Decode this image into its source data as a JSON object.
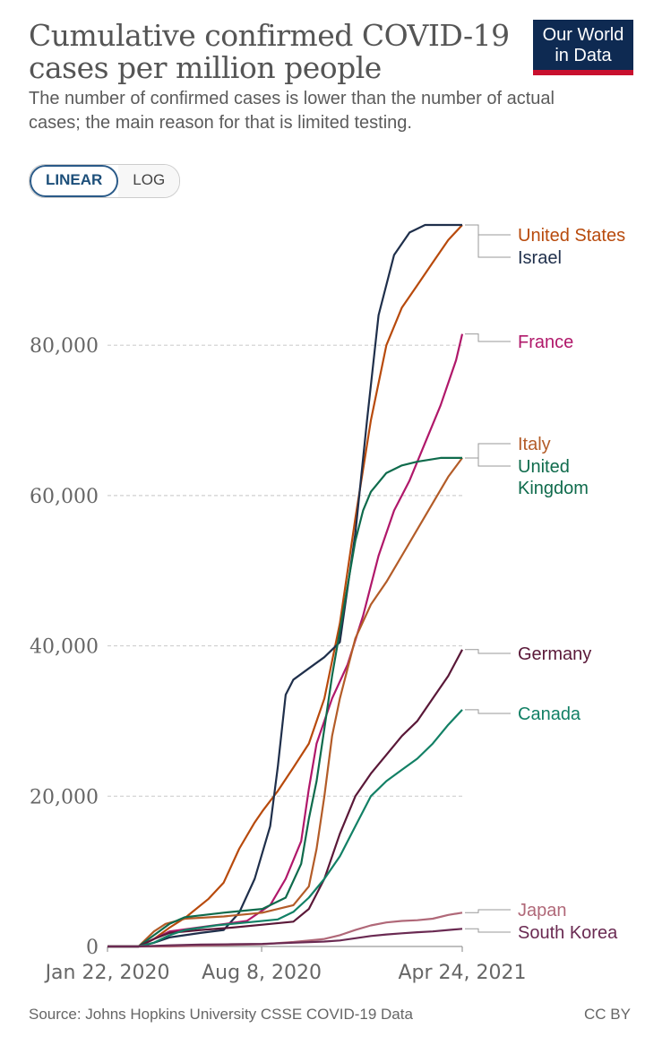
{
  "header": {
    "title": "Cumulative confirmed COVID-19 cases per million people",
    "subtitle": "The number of confirmed cases is lower than the number of actual cases; the main reason for that is limited testing.",
    "logo_line1": "Our World",
    "logo_line2": "in Data"
  },
  "controls": {
    "linear_label": "LINEAR",
    "log_label": "LOG",
    "selected": "LINEAR"
  },
  "footer": {
    "source": "Source: Johns Hopkins University CSSE COVID-19 Data",
    "license": "CC BY"
  },
  "colors": {
    "United States": "#b84a0c",
    "Israel": "#1f2f4b",
    "France": "#b0186a",
    "Italy": "#b35c28",
    "United Kingdom": "#0f6b4c",
    "Germany": "#5a1838",
    "Canada": "#128065",
    "Japan": "#b06878",
    "South Korea": "#6a2a52"
  },
  "chart_data": {
    "type": "line",
    "title": "Cumulative confirmed COVID-19 cases per million people",
    "xlabel": "",
    "ylabel": "",
    "x_unit": "days since Jan 22, 2020",
    "xlim": [
      0,
      458
    ],
    "ylim": [
      0,
      96000
    ],
    "y_ticks": [
      0,
      20000,
      40000,
      60000,
      80000
    ],
    "y_tick_labels": [
      "0",
      "20,000",
      "40,000",
      "60,000",
      "80,000"
    ],
    "x_ticks": [
      0,
      199,
      458
    ],
    "x_tick_labels": [
      "Jan 22, 2020",
      "Aug 8, 2020",
      "Apr 24, 2021"
    ],
    "grid": true,
    "legend": "right, end-labels",
    "series": [
      {
        "name": "United States",
        "points": [
          [
            0,
            0
          ],
          [
            40,
            0
          ],
          [
            60,
            1000
          ],
          [
            80,
            2500
          ],
          [
            100,
            3800
          ],
          [
            130,
            6300
          ],
          [
            150,
            8500
          ],
          [
            170,
            13000
          ],
          [
            190,
            16500
          ],
          [
            200,
            18000
          ],
          [
            220,
            20700
          ],
          [
            240,
            23800
          ],
          [
            260,
            27000
          ],
          [
            280,
            33000
          ],
          [
            300,
            43000
          ],
          [
            320,
            57000
          ],
          [
            340,
            70000
          ],
          [
            360,
            80000
          ],
          [
            380,
            85000
          ],
          [
            400,
            88000
          ],
          [
            420,
            91000
          ],
          [
            440,
            94000
          ],
          [
            458,
            96000
          ]
        ]
      },
      {
        "name": "Israel",
        "points": [
          [
            0,
            0
          ],
          [
            40,
            0
          ],
          [
            60,
            500
          ],
          [
            80,
            1200
          ],
          [
            120,
            1800
          ],
          [
            150,
            2200
          ],
          [
            170,
            4500
          ],
          [
            190,
            9000
          ],
          [
            210,
            16000
          ],
          [
            220,
            24000
          ],
          [
            230,
            33500
          ],
          [
            240,
            35500
          ],
          [
            260,
            37000
          ],
          [
            280,
            38500
          ],
          [
            300,
            40500
          ],
          [
            320,
            55000
          ],
          [
            335,
            70000
          ],
          [
            350,
            84000
          ],
          [
            370,
            92000
          ],
          [
            390,
            95000
          ],
          [
            410,
            96000
          ],
          [
            430,
            96000
          ],
          [
            458,
            96000
          ]
        ]
      },
      {
        "name": "France",
        "points": [
          [
            0,
            0
          ],
          [
            40,
            0
          ],
          [
            60,
            1000
          ],
          [
            80,
            2000
          ],
          [
            130,
            2700
          ],
          [
            180,
            3400
          ],
          [
            210,
            5500
          ],
          [
            230,
            9000
          ],
          [
            250,
            14000
          ],
          [
            260,
            21000
          ],
          [
            270,
            27000
          ],
          [
            290,
            33000
          ],
          [
            310,
            37500
          ],
          [
            330,
            44000
          ],
          [
            350,
            52000
          ],
          [
            370,
            58000
          ],
          [
            390,
            62000
          ],
          [
            410,
            67000
          ],
          [
            430,
            72000
          ],
          [
            450,
            78000
          ],
          [
            458,
            81500
          ]
        ]
      },
      {
        "name": "Italy",
        "points": [
          [
            0,
            0
          ],
          [
            40,
            0
          ],
          [
            60,
            2000
          ],
          [
            75,
            3000
          ],
          [
            100,
            3700
          ],
          [
            150,
            4000
          ],
          [
            200,
            4500
          ],
          [
            240,
            5500
          ],
          [
            260,
            8000
          ],
          [
            270,
            13000
          ],
          [
            280,
            20000
          ],
          [
            290,
            28000
          ],
          [
            300,
            33000
          ],
          [
            320,
            41000
          ],
          [
            340,
            45500
          ],
          [
            360,
            48500
          ],
          [
            380,
            52000
          ],
          [
            400,
            55500
          ],
          [
            420,
            59000
          ],
          [
            440,
            62500
          ],
          [
            458,
            65000
          ]
        ]
      },
      {
        "name": "United Kingdom",
        "points": [
          [
            0,
            0
          ],
          [
            40,
            0
          ],
          [
            60,
            1500
          ],
          [
            80,
            3000
          ],
          [
            100,
            3900
          ],
          [
            150,
            4500
          ],
          [
            200,
            5000
          ],
          [
            230,
            6500
          ],
          [
            250,
            11000
          ],
          [
            260,
            17000
          ],
          [
            270,
            22000
          ],
          [
            280,
            29000
          ],
          [
            290,
            36000
          ],
          [
            300,
            42000
          ],
          [
            310,
            48000
          ],
          [
            320,
            54000
          ],
          [
            330,
            58000
          ],
          [
            340,
            60500
          ],
          [
            360,
            63000
          ],
          [
            380,
            64000
          ],
          [
            400,
            64500
          ],
          [
            430,
            65000
          ],
          [
            458,
            65000
          ]
        ]
      },
      {
        "name": "Germany",
        "points": [
          [
            0,
            0
          ],
          [
            40,
            0
          ],
          [
            60,
            1000
          ],
          [
            80,
            1800
          ],
          [
            120,
            2200
          ],
          [
            160,
            2500
          ],
          [
            200,
            2900
          ],
          [
            240,
            3300
          ],
          [
            260,
            5000
          ],
          [
            280,
            9000
          ],
          [
            300,
            15000
          ],
          [
            320,
            20000
          ],
          [
            340,
            23000
          ],
          [
            360,
            25500
          ],
          [
            380,
            28000
          ],
          [
            400,
            30000
          ],
          [
            420,
            33000
          ],
          [
            440,
            36000
          ],
          [
            458,
            39500
          ]
        ]
      },
      {
        "name": "Canada",
        "points": [
          [
            0,
            0
          ],
          [
            40,
            0
          ],
          [
            60,
            500
          ],
          [
            80,
            1500
          ],
          [
            100,
            2200
          ],
          [
            140,
            2800
          ],
          [
            180,
            3200
          ],
          [
            220,
            3600
          ],
          [
            240,
            4600
          ],
          [
            260,
            6500
          ],
          [
            280,
            9000
          ],
          [
            300,
            12000
          ],
          [
            320,
            16000
          ],
          [
            340,
            20000
          ],
          [
            360,
            22000
          ],
          [
            380,
            23500
          ],
          [
            400,
            25000
          ],
          [
            420,
            27000
          ],
          [
            440,
            29500
          ],
          [
            458,
            31500
          ]
        ]
      },
      {
        "name": "Japan",
        "points": [
          [
            0,
            0
          ],
          [
            80,
            0
          ],
          [
            120,
            100
          ],
          [
            160,
            200
          ],
          [
            200,
            300
          ],
          [
            240,
            600
          ],
          [
            260,
            800
          ],
          [
            280,
            1000
          ],
          [
            300,
            1500
          ],
          [
            320,
            2200
          ],
          [
            340,
            2800
          ],
          [
            360,
            3200
          ],
          [
            380,
            3400
          ],
          [
            400,
            3500
          ],
          [
            420,
            3700
          ],
          [
            440,
            4200
          ],
          [
            458,
            4500
          ]
        ]
      },
      {
        "name": "South Korea",
        "points": [
          [
            0,
            0
          ],
          [
            40,
            0
          ],
          [
            80,
            150
          ],
          [
            120,
            250
          ],
          [
            160,
            300
          ],
          [
            200,
            350
          ],
          [
            240,
            500
          ],
          [
            280,
            650
          ],
          [
            300,
            800
          ],
          [
            320,
            1100
          ],
          [
            340,
            1400
          ],
          [
            360,
            1600
          ],
          [
            380,
            1750
          ],
          [
            400,
            1900
          ],
          [
            420,
            2000
          ],
          [
            440,
            2200
          ],
          [
            458,
            2350
          ]
        ]
      }
    ],
    "labels": [
      {
        "series": "United States",
        "lines": [
          "United States"
        ]
      },
      {
        "series": "Israel",
        "lines": [
          "Israel"
        ]
      },
      {
        "series": "France",
        "lines": [
          "France"
        ]
      },
      {
        "series": "Italy",
        "lines": [
          "Italy"
        ]
      },
      {
        "series": "United Kingdom",
        "lines": [
          "United",
          "Kingdom"
        ]
      },
      {
        "series": "Germany",
        "lines": [
          "Germany"
        ]
      },
      {
        "series": "Canada",
        "lines": [
          "Canada"
        ]
      },
      {
        "series": "Japan",
        "lines": [
          "Japan"
        ]
      },
      {
        "series": "South Korea",
        "lines": [
          "South Korea"
        ]
      }
    ]
  }
}
